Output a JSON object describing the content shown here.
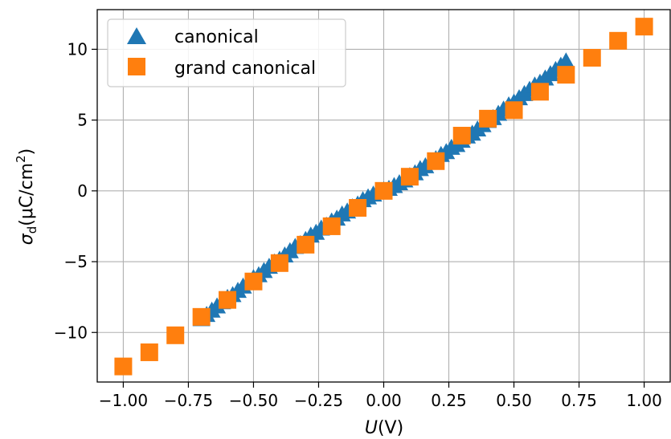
{
  "chart_data": {
    "type": "scatter",
    "title": "",
    "xlabel": {
      "var": "U",
      "unit": "(V)"
    },
    "ylabel": {
      "var": "σ",
      "sub": "d",
      "unit_pre": "(μC/cm",
      "sup": "2",
      "unit_post": ")"
    },
    "xlim": [
      -1.1,
      1.1
    ],
    "ylim": [
      -13.5,
      12.8
    ],
    "grid": true,
    "legend_position": "top-left",
    "x_ticks": [
      -1.0,
      -0.75,
      -0.5,
      -0.25,
      0.0,
      0.25,
      0.5,
      0.75,
      1.0
    ],
    "x_tick_labels": [
      "−1.00",
      "−0.75",
      "−0.50",
      "−0.25",
      "0.00",
      "0.25",
      "0.50",
      "0.75",
      "1.00"
    ],
    "y_ticks": [
      -10,
      -5,
      0,
      5,
      10
    ],
    "y_tick_labels": [
      "−10",
      "−5",
      "0",
      "5",
      "10"
    ],
    "series": [
      {
        "name": "canonical",
        "marker": "triangle",
        "color": "#1f77b4",
        "x": [
          -0.7,
          -0.68,
          -0.66,
          -0.64,
          -0.62,
          -0.6,
          -0.58,
          -0.56,
          -0.54,
          -0.52,
          -0.5,
          -0.48,
          -0.46,
          -0.44,
          -0.42,
          -0.4,
          -0.38,
          -0.36,
          -0.34,
          -0.32,
          -0.3,
          -0.28,
          -0.26,
          -0.24,
          -0.22,
          -0.2,
          -0.18,
          -0.16,
          -0.14,
          -0.12,
          -0.1,
          -0.08,
          -0.06,
          -0.04,
          -0.02,
          0.0,
          0.02,
          0.04,
          0.06,
          0.08,
          0.1,
          0.12,
          0.14,
          0.16,
          0.18,
          0.2,
          0.22,
          0.24,
          0.26,
          0.28,
          0.3,
          0.32,
          0.34,
          0.36,
          0.38,
          0.4,
          0.42,
          0.44,
          0.46,
          0.48,
          0.5,
          0.52,
          0.54,
          0.56,
          0.58,
          0.6,
          0.62,
          0.64,
          0.66,
          0.68,
          0.7
        ],
        "y": [
          -9.1,
          -8.8,
          -8.5,
          -8.2,
          -7.9,
          -7.6,
          -7.4,
          -7.1,
          -6.8,
          -6.5,
          -6.2,
          -6.0,
          -5.7,
          -5.4,
          -5.1,
          -4.9,
          -4.6,
          -4.3,
          -4.0,
          -3.8,
          -3.5,
          -3.2,
          -3.0,
          -2.7,
          -2.5,
          -2.2,
          -2.0,
          -1.7,
          -1.5,
          -1.2,
          -1.0,
          -0.7,
          -0.5,
          -0.3,
          -0.1,
          0.0,
          0.1,
          0.3,
          0.5,
          0.7,
          1.0,
          1.2,
          1.5,
          1.7,
          2.0,
          2.2,
          2.5,
          2.7,
          3.0,
          3.2,
          3.5,
          3.8,
          4.0,
          4.3,
          4.6,
          4.9,
          5.1,
          5.4,
          5.7,
          6.0,
          6.2,
          6.5,
          6.8,
          7.1,
          7.4,
          7.6,
          7.9,
          8.2,
          8.5,
          8.8,
          9.1
        ]
      },
      {
        "name": "grand canonical",
        "marker": "square",
        "color": "#ff7f0e",
        "x": [
          -1.0,
          -0.9,
          -0.8,
          -0.7,
          -0.6,
          -0.5,
          -0.4,
          -0.3,
          -0.2,
          -0.1,
          0.0,
          0.1,
          0.2,
          0.3,
          0.4,
          0.5,
          0.6,
          0.7,
          0.8,
          0.9,
          1.0
        ],
        "y": [
          -12.4,
          -11.4,
          -10.2,
          -8.9,
          -7.7,
          -6.4,
          -5.1,
          -3.8,
          -2.5,
          -1.2,
          0.0,
          1.0,
          2.1,
          3.9,
          5.1,
          5.7,
          7.0,
          8.2,
          9.4,
          10.6,
          11.6
        ]
      }
    ]
  }
}
